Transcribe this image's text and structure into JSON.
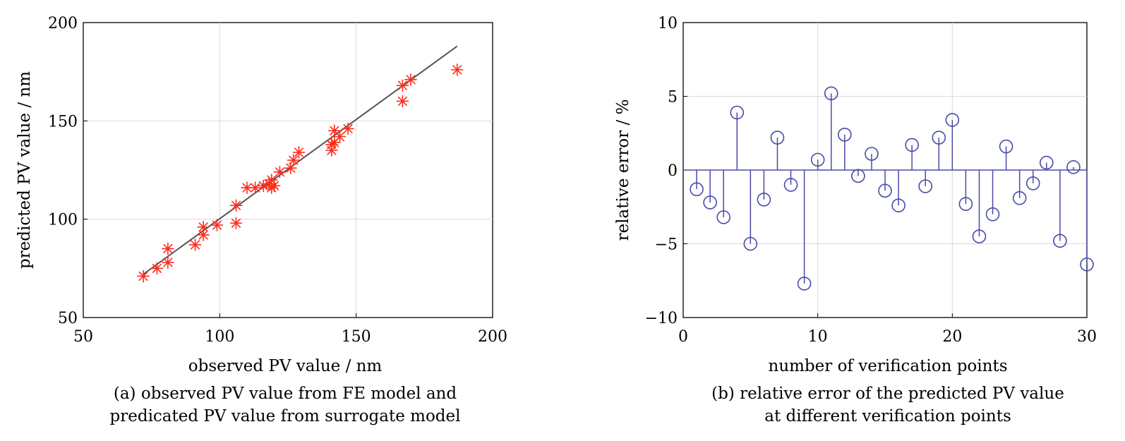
{
  "chart_data": [
    {
      "type": "scatter",
      "xlabel": "observed PV value / nm",
      "ylabel": "predicted PV value / nm",
      "caption_lines": [
        "(a) observed PV value from FE model and",
        "predicated PV value from surrogate model"
      ],
      "xlim": [
        50,
        200
      ],
      "ylim": [
        50,
        200
      ],
      "xticks": [
        "50",
        "100",
        "150",
        "200"
      ],
      "yticks": [
        "50",
        "100",
        "150",
        "200"
      ],
      "grid": true,
      "marker_color": "#ff2a1a",
      "line_color": "#555555",
      "fit_line": {
        "x": [
          72,
          187
        ],
        "y": [
          72,
          188
        ]
      },
      "points": [
        {
          "x": 72,
          "y": 71
        },
        {
          "x": 77,
          "y": 75
        },
        {
          "x": 81,
          "y": 78
        },
        {
          "x": 81,
          "y": 85
        },
        {
          "x": 91,
          "y": 87
        },
        {
          "x": 94,
          "y": 92
        },
        {
          "x": 94,
          "y": 96
        },
        {
          "x": 99,
          "y": 97
        },
        {
          "x": 106,
          "y": 98
        },
        {
          "x": 106,
          "y": 107
        },
        {
          "x": 110,
          "y": 116
        },
        {
          "x": 113,
          "y": 116
        },
        {
          "x": 116,
          "y": 117
        },
        {
          "x": 118,
          "y": 118
        },
        {
          "x": 119,
          "y": 116
        },
        {
          "x": 119,
          "y": 120
        },
        {
          "x": 120,
          "y": 117
        },
        {
          "x": 122,
          "y": 124
        },
        {
          "x": 126,
          "y": 126
        },
        {
          "x": 127,
          "y": 130
        },
        {
          "x": 129,
          "y": 134
        },
        {
          "x": 141,
          "y": 135
        },
        {
          "x": 141,
          "y": 138
        },
        {
          "x": 142,
          "y": 139
        },
        {
          "x": 142,
          "y": 145
        },
        {
          "x": 144,
          "y": 142
        },
        {
          "x": 147,
          "y": 146
        },
        {
          "x": 167,
          "y": 160
        },
        {
          "x": 167,
          "y": 168
        },
        {
          "x": 170,
          "y": 171
        },
        {
          "x": 187,
          "y": 176
        }
      ]
    },
    {
      "type": "stem",
      "xlabel": "number of verification points",
      "ylabel": "relative error / %",
      "caption_lines": [
        "(b) relative error of the predicted PV value",
        "at different verification points"
      ],
      "xlim": [
        0,
        30
      ],
      "ylim": [
        -10,
        10
      ],
      "xticks": [
        "0",
        "10",
        "20",
        "30"
      ],
      "yticks": [
        "−10",
        "−5",
        "0",
        "5",
        "10"
      ],
      "grid": true,
      "stem_color": "#4a4aa8",
      "x": [
        1,
        2,
        3,
        4,
        5,
        6,
        7,
        8,
        9,
        10,
        11,
        12,
        13,
        14,
        15,
        16,
        17,
        18,
        19,
        20,
        21,
        22,
        23,
        24,
        25,
        26,
        27,
        28,
        29,
        30
      ],
      "values": [
        -1.3,
        -2.2,
        -3.2,
        3.9,
        -5.0,
        -2.0,
        2.2,
        -1.0,
        -7.7,
        0.7,
        5.2,
        2.4,
        -0.4,
        1.1,
        -1.4,
        -2.4,
        1.7,
        -1.1,
        2.2,
        3.4,
        -2.3,
        -4.5,
        -3.0,
        1.6,
        -1.9,
        -0.9,
        0.5,
        -4.8,
        0.2,
        -6.4
      ]
    }
  ]
}
